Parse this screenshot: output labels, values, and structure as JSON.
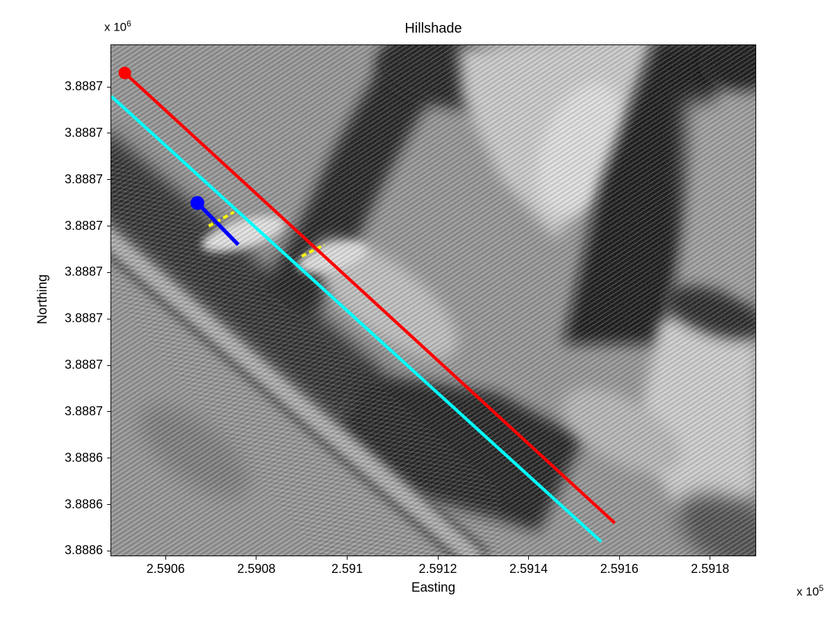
{
  "figure": {
    "title": "Hillshade",
    "xlabel": "Easting",
    "ylabel": "Northing",
    "x_mult_base": "x 10",
    "x_mult_exp": "5",
    "y_mult_base": "x 10",
    "y_mult_exp": "6"
  },
  "chart_data": {
    "type": "line",
    "title": "Hillshade",
    "xlabel": "Easting",
    "ylabel": "Northing",
    "background": "grayscale lidar hillshade raster with diagonal scan-line artifacts",
    "grid": false,
    "legend": null,
    "x_unit_multiplier": 100000,
    "y_unit_multiplier": 1000000,
    "xlim": [
      259048,
      259190
    ],
    "ylim": [
      3888619,
      3888729
    ],
    "x_ticks": [
      {
        "value": 259060,
        "label": "2.5906"
      },
      {
        "value": 259080,
        "label": "2.5908"
      },
      {
        "value": 259100,
        "label": "2.591"
      },
      {
        "value": 259120,
        "label": "2.5912"
      },
      {
        "value": 259140,
        "label": "2.5914"
      },
      {
        "value": 259160,
        "label": "2.5916"
      },
      {
        "value": 259180,
        "label": "2.5918"
      }
    ],
    "y_ticks": [
      {
        "value": 3888720,
        "label": "3.8887"
      },
      {
        "value": 3888710,
        "label": "3.8887"
      },
      {
        "value": 3888700,
        "label": "3.8887"
      },
      {
        "value": 3888690,
        "label": "3.8887"
      },
      {
        "value": 3888680,
        "label": "3.8887"
      },
      {
        "value": 3888670,
        "label": "3.8887"
      },
      {
        "value": 3888660,
        "label": "3.8887"
      },
      {
        "value": 3888650,
        "label": "3.8887"
      },
      {
        "value": 3888640,
        "label": "3.8886"
      },
      {
        "value": 3888630,
        "label": "3.8886"
      },
      {
        "value": 3888620,
        "label": "3.8886"
      }
    ],
    "series": [
      {
        "name": "cyan-line",
        "color": "#00ffff",
        "width": 4.5,
        "points": [
          [
            259048,
            3888718
          ],
          [
            259156,
            3888622
          ]
        ]
      },
      {
        "name": "yellow-dashed-2",
        "color": "#ffff00",
        "width": 4,
        "dash": "7 5",
        "points": [
          [
            259090,
            3888683.5
          ],
          [
            259095,
            3888686
          ]
        ]
      },
      {
        "name": "red-line",
        "color": "#ff0000",
        "width": 4.5,
        "marker": {
          "pos": "start",
          "r": 9
        },
        "points": [
          [
            259051,
            3888723
          ],
          [
            259159,
            3888626
          ]
        ]
      },
      {
        "name": "yellow-dashed-1",
        "color": "#ffff00",
        "width": 4,
        "dash": "7 5",
        "points": [
          [
            259069.5,
            3888690
          ],
          [
            259075,
            3888693
          ]
        ]
      },
      {
        "name": "blue-line",
        "color": "#0000ff",
        "width": 5.5,
        "marker": {
          "pos": "start",
          "r": 10
        },
        "points": [
          [
            259067,
            3888695
          ],
          [
            259076,
            3888686
          ]
        ]
      }
    ]
  }
}
